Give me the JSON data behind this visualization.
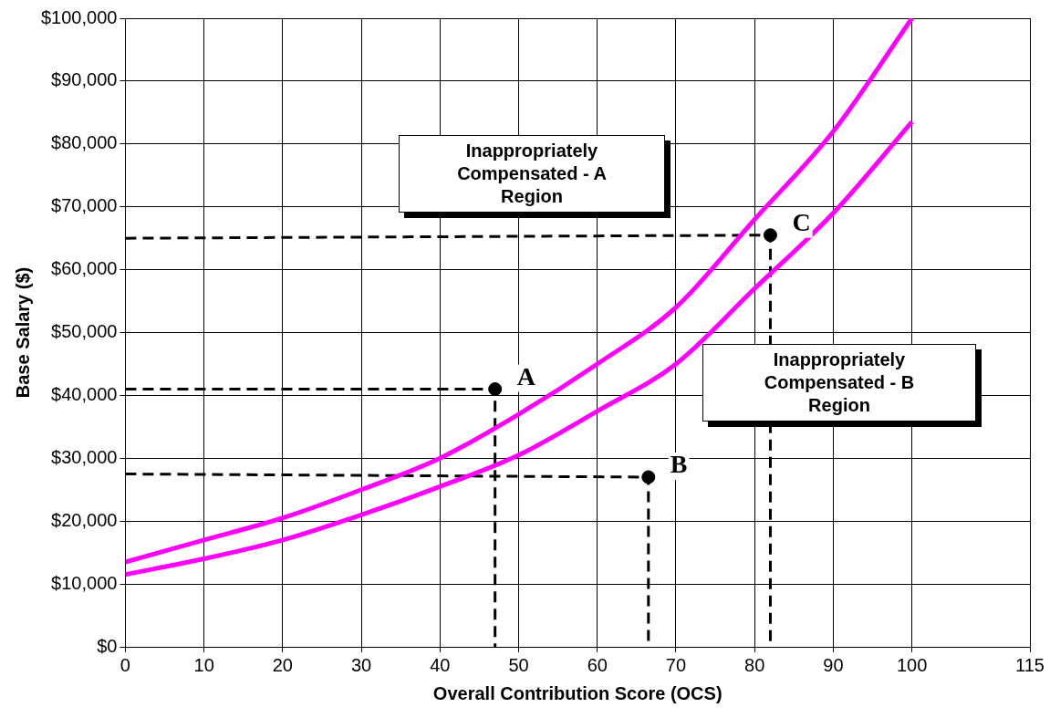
{
  "chart_data": {
    "type": "line",
    "xlabel": "Overall Contribution Score (OCS)",
    "ylabel": "Base Salary ($)",
    "xlim": [
      0,
      115
    ],
    "xticks": [
      0,
      10,
      20,
      30,
      40,
      50,
      60,
      70,
      80,
      90,
      100,
      115
    ],
    "ylim": [
      0,
      100000
    ],
    "yticks": [
      {
        "value": 0,
        "label": "$0"
      },
      {
        "value": 10000,
        "label": "$10,000"
      },
      {
        "value": 20000,
        "label": "$20,000"
      },
      {
        "value": 30000,
        "label": "$30,000"
      },
      {
        "value": 40000,
        "label": "$40,000"
      },
      {
        "value": 50000,
        "label": "$50,000"
      },
      {
        "value": 60000,
        "label": "$60,000"
      },
      {
        "value": 70000,
        "label": "$70,000"
      },
      {
        "value": 80000,
        "label": "$80,000"
      },
      {
        "value": 90000,
        "label": "$90,000"
      },
      {
        "value": 100000,
        "label": "$100,000"
      }
    ],
    "grid": true,
    "legend": false,
    "series": [
      {
        "color": "#ff00ff",
        "marker": "none",
        "x": [
          0,
          10,
          20,
          30,
          40,
          50,
          60,
          70,
          80,
          90,
          100
        ],
        "values": [
          13500,
          17000,
          20500,
          25000,
          30000,
          37000,
          45000,
          54000,
          68000,
          82000,
          100000
        ]
      },
      {
        "color": "#ff00ff",
        "marker": "none",
        "x": [
          0,
          10,
          20,
          30,
          40,
          50,
          60,
          70,
          80,
          90,
          100
        ],
        "values": [
          11500,
          14000,
          17000,
          21000,
          25500,
          30500,
          37500,
          45000,
          57000,
          69000,
          83500
        ]
      },
      {
        "type": "line",
        "color": "#000000",
        "marker": "none",
        "line_style": "dashed",
        "x": [
          0,
          47,
          47
        ],
        "values": [
          41000,
          41000,
          0
        ]
      },
      {
        "type": "line",
        "color": "#000000",
        "marker": "none",
        "line_style": "dashed",
        "x": [
          0,
          66.5,
          66.5
        ],
        "values": [
          27500,
          27000,
          0
        ]
      },
      {
        "type": "line",
        "color": "#000000",
        "marker": "none",
        "line_style": "dashed",
        "x": [
          0,
          82,
          82
        ],
        "values": [
          65000,
          65500,
          0
        ]
      },
      {
        "type": "scatter",
        "color": "#000000",
        "marker": "circle",
        "x": [
          47,
          66.5,
          82
        ],
        "values": [
          41000,
          27000,
          65500
        ]
      }
    ],
    "annotations": [
      {
        "text": "A",
        "x": 47,
        "y": 41000
      },
      {
        "text": "B",
        "x": 66.5,
        "y": 27000
      },
      {
        "text": "C",
        "x": 82,
        "y": 65500
      },
      "Inappropriately Compensated - A Region",
      "Inappropriately Compensated - B Region"
    ]
  }
}
